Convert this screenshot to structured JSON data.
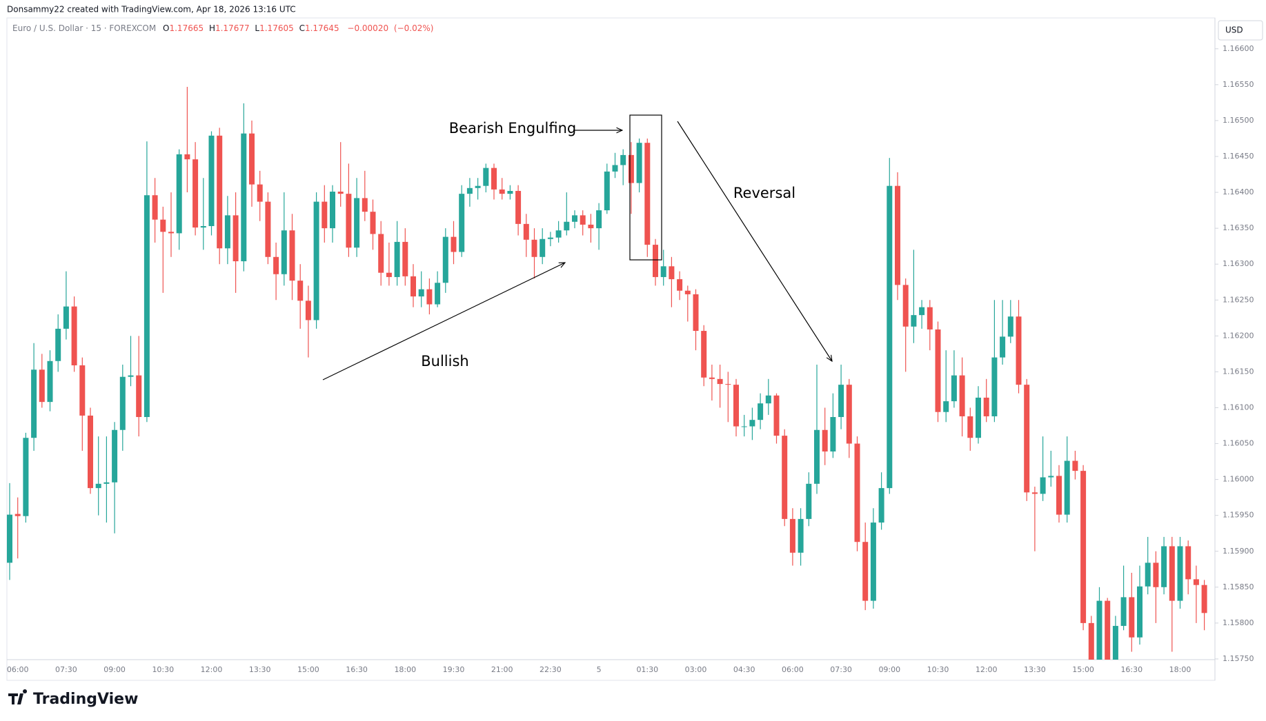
{
  "chart_data": {
    "type": "candlestick",
    "header": "Donsammy22 created with TradingView.com, Apr 18, 2026 13:16 UTC",
    "symbol": "Euro / U.S. Dollar · 15 · FOREXCOM",
    "legend": {
      "open_label": "O",
      "open": 1.17665,
      "high_label": "H",
      "high": 1.17677,
      "low_label": "L",
      "low": 1.17605,
      "close_label": "C",
      "close": 1.17645,
      "change": {
        "value": -0.0002,
        "label": "−0.00020"
      },
      "change_pct": {
        "value": -0.02,
        "label": "(−0.02%)"
      }
    },
    "currency": "USD",
    "brand": "TradingView",
    "annotations": {
      "engulfing": "Bearish Engulfing",
      "reversal": "Reversal",
      "bullish": "Bullish"
    },
    "up_color": "#26a69a",
    "down_color": "#ef5350",
    "ylim": [
      1.15749,
      1.16643
    ],
    "yticks": [
      {
        "value": 1.166,
        "label": "1.16600"
      },
      {
        "value": 1.1655,
        "label": "1.16550"
      },
      {
        "value": 1.165,
        "label": "1.16500"
      },
      {
        "value": 1.1645,
        "label": "1.16450"
      },
      {
        "value": 1.164,
        "label": "1.16400"
      },
      {
        "value": 1.1635,
        "label": "1.16350"
      },
      {
        "value": 1.163,
        "label": "1.16300"
      },
      {
        "value": 1.1625,
        "label": "1.16250"
      },
      {
        "value": 1.162,
        "label": "1.16200"
      },
      {
        "value": 1.1615,
        "label": "1.16150"
      },
      {
        "value": 1.161,
        "label": "1.16100"
      },
      {
        "value": 1.1605,
        "label": "1.16050"
      },
      {
        "value": 1.16,
        "label": "1.16000"
      },
      {
        "value": 1.1595,
        "label": "1.15950"
      },
      {
        "value": 1.159,
        "label": "1.15900"
      },
      {
        "value": 1.1585,
        "label": "1.15850"
      },
      {
        "value": 1.158,
        "label": "1.15800"
      },
      {
        "value": 1.1575,
        "label": "1.15750"
      }
    ],
    "categories": [
      null,
      "06:00",
      null,
      null,
      null,
      null,
      null,
      "07:30",
      null,
      null,
      null,
      null,
      null,
      "09:00",
      null,
      null,
      null,
      null,
      null,
      "10:30",
      null,
      null,
      null,
      null,
      null,
      "12:00",
      null,
      null,
      null,
      null,
      null,
      "13:30",
      null,
      null,
      null,
      null,
      null,
      "15:00",
      null,
      null,
      null,
      null,
      null,
      "16:30",
      null,
      null,
      null,
      null,
      null,
      "18:00",
      null,
      null,
      null,
      null,
      null,
      "19:30",
      null,
      null,
      null,
      null,
      null,
      "21:00",
      null,
      null,
      null,
      null,
      null,
      "22:30",
      null,
      null,
      null,
      null,
      null,
      "5",
      null,
      null,
      null,
      null,
      null,
      "01:30",
      null,
      null,
      null,
      null,
      null,
      "03:00",
      null,
      null,
      null,
      null,
      null,
      "04:30",
      null,
      null,
      null,
      null,
      null,
      "06:00",
      null,
      null,
      null,
      null,
      null,
      "07:30",
      null,
      null,
      null,
      null,
      null,
      "09:00",
      null,
      null,
      null,
      null,
      null,
      "10:30",
      null,
      null,
      null,
      null,
      null,
      "12:00",
      null,
      null,
      null,
      null,
      null,
      "13:30",
      null,
      null,
      null,
      null,
      null,
      "15:00",
      null,
      null,
      null,
      null,
      null,
      "16:30",
      null,
      null,
      null,
      null,
      null,
      "18:00",
      null,
      null,
      null
    ],
    "ohlc": [
      [
        1.15884,
        1.15995,
        1.1586,
        1.15951
      ],
      [
        1.15952,
        1.15975,
        1.1589,
        1.15949
      ],
      [
        1.15949,
        1.16065,
        1.1594,
        1.16058
      ],
      [
        1.16058,
        1.1619,
        1.1604,
        1.16153
      ],
      [
        1.16153,
        1.16175,
        1.161,
        1.16108
      ],
      [
        1.16108,
        1.1618,
        1.16095,
        1.16165
      ],
      [
        1.16165,
        1.1623,
        1.1615,
        1.1621
      ],
      [
        1.1621,
        1.1629,
        1.16195,
        1.16241
      ],
      [
        1.16241,
        1.16255,
        1.1615,
        1.16159
      ],
      [
        1.16159,
        1.1617,
        1.1604,
        1.16089
      ],
      [
        1.16089,
        1.161,
        1.1598,
        1.15988
      ],
      [
        1.15988,
        1.1606,
        1.1595,
        1.15994
      ],
      [
        1.15994,
        1.1606,
        1.1594,
        1.15996
      ],
      [
        1.15996,
        1.1608,
        1.15925,
        1.16069
      ],
      [
        1.16069,
        1.1616,
        1.1604,
        1.16143
      ],
      [
        1.16143,
        1.162,
        1.1613,
        1.16145
      ],
      [
        1.16145,
        1.162,
        1.1606,
        1.16087
      ],
      [
        1.16087,
        1.16471,
        1.1608,
        1.16396
      ],
      [
        1.16396,
        1.1642,
        1.1633,
        1.16362
      ],
      [
        1.16362,
        1.1638,
        1.1626,
        1.16345
      ],
      [
        1.16345,
        1.164,
        1.1631,
        1.16343
      ],
      [
        1.16343,
        1.1646,
        1.1632,
        1.16453
      ],
      [
        1.16453,
        1.16547,
        1.164,
        1.16446
      ],
      [
        1.16446,
        1.1647,
        1.1634,
        1.16351
      ],
      [
        1.16351,
        1.1642,
        1.1632,
        1.16353
      ],
      [
        1.16353,
        1.16485,
        1.1634,
        1.16479
      ],
      [
        1.16479,
        1.1649,
        1.163,
        1.16322
      ],
      [
        1.16322,
        1.16395,
        1.163,
        1.16368
      ],
      [
        1.16368,
        1.164,
        1.1626,
        1.16304
      ],
      [
        1.16304,
        1.16524,
        1.1629,
        1.16482
      ],
      [
        1.16482,
        1.165,
        1.1638,
        1.16411
      ],
      [
        1.16411,
        1.1643,
        1.1636,
        1.16387
      ],
      [
        1.16387,
        1.164,
        1.163,
        1.1631
      ],
      [
        1.1631,
        1.1633,
        1.1625,
        1.16286
      ],
      [
        1.16286,
        1.164,
        1.1627,
        1.16347
      ],
      [
        1.16347,
        1.1637,
        1.1625,
        1.16277
      ],
      [
        1.16277,
        1.163,
        1.1621,
        1.16249
      ],
      [
        1.16249,
        1.1627,
        1.1617,
        1.16222
      ],
      [
        1.16222,
        1.164,
        1.1621,
        1.16387
      ],
      [
        1.16387,
        1.1641,
        1.1633,
        1.1635
      ],
      [
        1.1635,
        1.1641,
        1.1633,
        1.16401
      ],
      [
        1.16401,
        1.1647,
        1.1638,
        1.16398
      ],
      [
        1.16398,
        1.1644,
        1.1631,
        1.16323
      ],
      [
        1.16323,
        1.1642,
        1.1631,
        1.16392
      ],
      [
        1.16392,
        1.1643,
        1.1636,
        1.16373
      ],
      [
        1.16373,
        1.1639,
        1.1632,
        1.16342
      ],
      [
        1.16342,
        1.1636,
        1.1627,
        1.16288
      ],
      [
        1.16288,
        1.1633,
        1.1627,
        1.16282
      ],
      [
        1.16282,
        1.1636,
        1.1627,
        1.16331
      ],
      [
        1.16331,
        1.1635,
        1.1627,
        1.16283
      ],
      [
        1.16283,
        1.163,
        1.1624,
        1.16255
      ],
      [
        1.16255,
        1.1629,
        1.1624,
        1.16265
      ],
      [
        1.16265,
        1.1628,
        1.1623,
        1.16244
      ],
      [
        1.16244,
        1.1629,
        1.1624,
        1.16274
      ],
      [
        1.16274,
        1.1635,
        1.1626,
        1.16338
      ],
      [
        1.16338,
        1.1636,
        1.163,
        1.16317
      ],
      [
        1.16317,
        1.1641,
        1.1631,
        1.16398
      ],
      [
        1.16398,
        1.1642,
        1.1638,
        1.16406
      ],
      [
        1.16406,
        1.1642,
        1.1639,
        1.16409
      ],
      [
        1.16409,
        1.1644,
        1.164,
        1.16434
      ],
      [
        1.16434,
        1.1644,
        1.1639,
        1.16404
      ],
      [
        1.16404,
        1.1642,
        1.1639,
        1.16398
      ],
      [
        1.16398,
        1.1641,
        1.1639,
        1.16402
      ],
      [
        1.16402,
        1.1641,
        1.1634,
        1.16356
      ],
      [
        1.16356,
        1.1637,
        1.1631,
        1.16334
      ],
      [
        1.16334,
        1.1635,
        1.1628,
        1.1631
      ],
      [
        1.1631,
        1.1635,
        1.163,
        1.16335
      ],
      [
        1.16335,
        1.16345,
        1.16325,
        1.16337
      ],
      [
        1.16337,
        1.1636,
        1.1633,
        1.16347
      ],
      [
        1.16347,
        1.164,
        1.1634,
        1.16359
      ],
      [
        1.16359,
        1.16375,
        1.1635,
        1.16368
      ],
      [
        1.16368,
        1.16375,
        1.1634,
        1.16355
      ],
      [
        1.16355,
        1.1637,
        1.1633,
        1.1635
      ],
      [
        1.1635,
        1.16385,
        1.1632,
        1.16375
      ],
      [
        1.16375,
        1.1644,
        1.1637,
        1.16429
      ],
      [
        1.16429,
        1.16455,
        1.1642,
        1.16438
      ],
      [
        1.16438,
        1.1646,
        1.1641,
        1.16452
      ],
      [
        1.16452,
        1.1647,
        1.1637,
        1.16413
      ],
      [
        1.16413,
        1.16475,
        1.164,
        1.16469
      ],
      [
        1.16469,
        1.16475,
        1.1631,
        1.16327
      ],
      [
        1.16327,
        1.16335,
        1.1627,
        1.16282
      ],
      [
        1.16282,
        1.1632,
        1.1627,
        1.16297
      ],
      [
        1.16297,
        1.1631,
        1.1624,
        1.16279
      ],
      [
        1.16279,
        1.1629,
        1.1625,
        1.16263
      ],
      [
        1.16263,
        1.1627,
        1.1622,
        1.16258
      ],
      [
        1.16258,
        1.16265,
        1.1618,
        1.16207
      ],
      [
        1.16207,
        1.16215,
        1.1613,
        1.16142
      ],
      [
        1.16142,
        1.1616,
        1.1611,
        1.1614
      ],
      [
        1.1614,
        1.1616,
        1.161,
        1.16133
      ],
      [
        1.16133,
        1.1615,
        1.1608,
        1.16132
      ],
      [
        1.16132,
        1.1614,
        1.1606,
        1.16074
      ],
      [
        1.16074,
        1.1609,
        1.1606,
        1.16074
      ],
      [
        1.16074,
        1.161,
        1.16055,
        1.16083
      ],
      [
        1.16083,
        1.1612,
        1.1607,
        1.16106
      ],
      [
        1.16106,
        1.1614,
        1.1609,
        1.16117
      ],
      [
        1.16117,
        1.1612,
        1.1605,
        1.16061
      ],
      [
        1.16061,
        1.1607,
        1.15935,
        1.15945
      ],
      [
        1.15945,
        1.1596,
        1.1588,
        1.15898
      ],
      [
        1.15898,
        1.1596,
        1.1588,
        1.15945
      ],
      [
        1.15945,
        1.1601,
        1.15935,
        1.15994
      ],
      [
        1.15994,
        1.1616,
        1.1598,
        1.16069
      ],
      [
        1.16069,
        1.161,
        1.1602,
        1.16039
      ],
      [
        1.16039,
        1.1612,
        1.1603,
        1.16087
      ],
      [
        1.16087,
        1.1616,
        1.1607,
        1.16132
      ],
      [
        1.16132,
        1.1614,
        1.1603,
        1.1605
      ],
      [
        1.1605,
        1.1606,
        1.159,
        1.15913
      ],
      [
        1.15913,
        1.1594,
        1.15818,
        1.15831
      ],
      [
        1.15831,
        1.1596,
        1.1582,
        1.1594
      ],
      [
        1.1594,
        1.1601,
        1.1593,
        1.15988
      ],
      [
        1.15988,
        1.16448,
        1.1598,
        1.16409
      ],
      [
        1.16409,
        1.16428,
        1.1625,
        1.16271
      ],
      [
        1.16271,
        1.1628,
        1.1615,
        1.16213
      ],
      [
        1.16213,
        1.1632,
        1.1619,
        1.16229
      ],
      [
        1.16229,
        1.1625,
        1.1621,
        1.1624
      ],
      [
        1.1624,
        1.1625,
        1.1618,
        1.16209
      ],
      [
        1.16209,
        1.1622,
        1.1608,
        1.16094
      ],
      [
        1.16094,
        1.1618,
        1.1608,
        1.16109
      ],
      [
        1.16109,
        1.1618,
        1.161,
        1.16145
      ],
      [
        1.16145,
        1.1617,
        1.1606,
        1.16088
      ],
      [
        1.16088,
        1.161,
        1.1604,
        1.16058
      ],
      [
        1.16058,
        1.1613,
        1.1605,
        1.16114
      ],
      [
        1.16114,
        1.1614,
        1.1608,
        1.16088
      ],
      [
        1.16088,
        1.1625,
        1.1608,
        1.1617
      ],
      [
        1.1617,
        1.1625,
        1.1616,
        1.16199
      ],
      [
        1.16199,
        1.1625,
        1.1619,
        1.16227
      ],
      [
        1.16227,
        1.1625,
        1.1612,
        1.16132
      ],
      [
        1.16132,
        1.1614,
        1.1597,
        1.15982
      ],
      [
        1.15982,
        1.1599,
        1.159,
        1.1598
      ],
      [
        1.1598,
        1.1606,
        1.1597,
        1.16003
      ],
      [
        1.16003,
        1.1604,
        1.1599,
        1.16005
      ],
      [
        1.16005,
        1.1602,
        1.1594,
        1.15951
      ],
      [
        1.15951,
        1.1606,
        1.1594,
        1.16026
      ],
      [
        1.16026,
        1.1604,
        1.16,
        1.16012
      ],
      [
        1.16012,
        1.1602,
        1.1579,
        1.158
      ],
      [
        1.158,
        1.1581,
        1.15749,
        1.15749
      ],
      [
        1.15749,
        1.1585,
        1.15749,
        1.15831
      ],
      [
        1.15831,
        1.15835,
        1.15749,
        1.15749
      ],
      [
        1.15749,
        1.1581,
        1.15749,
        1.15796
      ],
      [
        1.15796,
        1.1588,
        1.1579,
        1.15836
      ],
      [
        1.15836,
        1.1587,
        1.1576,
        1.1578
      ],
      [
        1.1578,
        1.1588,
        1.1577,
        1.15851
      ],
      [
        1.15851,
        1.1592,
        1.1584,
        1.15884
      ],
      [
        1.15884,
        1.159,
        1.158,
        1.1585
      ],
      [
        1.1585,
        1.1592,
        1.1584,
        1.15907
      ],
      [
        1.15907,
        1.1592,
        1.1576,
        1.15831
      ],
      [
        1.15831,
        1.1592,
        1.1582,
        1.15907
      ],
      [
        1.15907,
        1.15915,
        1.1584,
        1.15861
      ],
      [
        1.15861,
        1.1588,
        1.158,
        1.15853
      ],
      [
        1.15853,
        1.1586,
        1.1579,
        1.15814
      ]
    ]
  }
}
